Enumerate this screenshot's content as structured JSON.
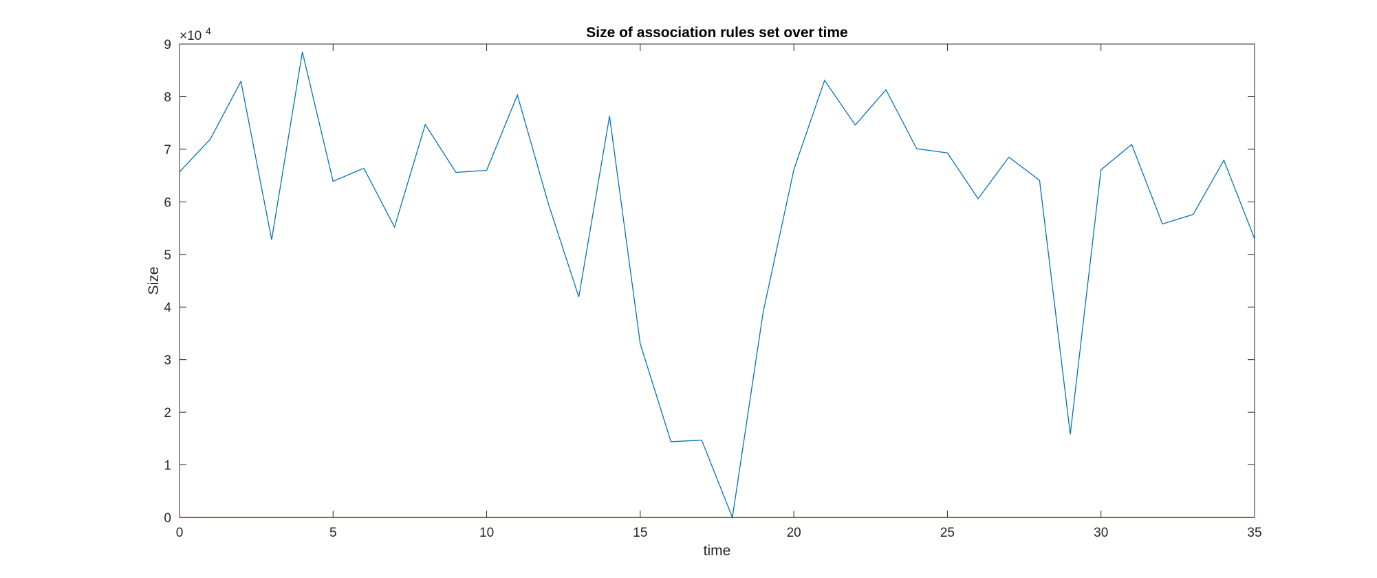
{
  "chart_data": {
    "type": "line",
    "title": "Size of association rules set over time",
    "xlabel": "time",
    "ylabel": "Size",
    "exponent_label": "×10",
    "exponent_power": "4",
    "xlim": [
      0,
      35
    ],
    "ylim": [
      0,
      90000
    ],
    "xticks": [
      0,
      5,
      10,
      15,
      20,
      25,
      30,
      35
    ],
    "yticks": [
      0,
      10000,
      20000,
      30000,
      40000,
      50000,
      60000,
      70000,
      80000,
      90000
    ],
    "ytick_labels": [
      "0",
      "1",
      "2",
      "3",
      "4",
      "5",
      "6",
      "7",
      "8",
      "9"
    ],
    "xtick_labels": [
      "0",
      "5",
      "10",
      "15",
      "20",
      "25",
      "30",
      "35"
    ],
    "grid": false,
    "box": true,
    "x": [
      0,
      1,
      2,
      3,
      4,
      5,
      6,
      7,
      8,
      9,
      10,
      11,
      12,
      13,
      14,
      15,
      16,
      17,
      18,
      19,
      20,
      21,
      22,
      23,
      24,
      25,
      26,
      27,
      28,
      29,
      30,
      31,
      32,
      33,
      34,
      35
    ],
    "series": [
      {
        "color": "#0072BD",
        "values": [
          65700,
          71900,
          82900,
          52800,
          88500,
          63900,
          66400,
          55200,
          74700,
          65600,
          66000,
          80300,
          59800,
          41900,
          76300,
          33000,
          14400,
          14700,
          0,
          39000,
          66100,
          83100,
          74600,
          81300,
          70100,
          69300,
          60600,
          68500,
          64100,
          15800,
          66100,
          70900,
          55800,
          57600,
          67900,
          53000
        ]
      },
      {
        "color": "#D95319",
        "values": [
          30,
          30,
          30,
          30,
          30,
          30,
          30,
          30,
          30,
          30,
          30,
          30,
          30,
          30,
          30,
          30,
          30,
          30,
          30,
          30,
          30,
          30,
          30,
          30,
          30,
          30,
          30,
          30,
          30,
          30,
          30,
          30,
          30,
          30,
          30,
          30
        ]
      }
    ]
  }
}
